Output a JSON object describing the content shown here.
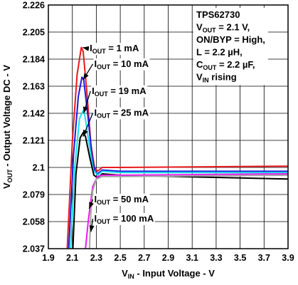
{
  "chart_data": {
    "type": "line",
    "title": "",
    "xlabel": {
      "main": "V",
      "sub": "IN",
      "rest": " - Input Voltage - V"
    },
    "ylabel": {
      "main": "V",
      "sub": "OUT",
      "rest": " - Output Voltage DC - V"
    },
    "xlim": [
      1.9,
      3.9
    ],
    "ylim": [
      2.037,
      2.226
    ],
    "x_ticks": [
      "1.9",
      "2.1",
      "2.3",
      "2.5",
      "2.7",
      "2.9",
      "3.1",
      "3.3",
      "3.5",
      "3.7",
      "3.9"
    ],
    "y_ticks": [
      "2.226",
      "2.205",
      "2.184",
      "2.163",
      "2.142",
      "2.121",
      "2.1",
      "2.079",
      "2.058",
      "2.037"
    ],
    "grid": true,
    "info_box": [
      {
        "main": "TPS62730",
        "sub": "",
        "rest": ""
      },
      {
        "main": "V",
        "sub": "OUT",
        "rest": " = 2.1 V,"
      },
      {
        "main": "ON/BYP = High,",
        "sub": "",
        "rest": ""
      },
      {
        "main": "L = 2.2 µH,",
        "sub": "",
        "rest": ""
      },
      {
        "main": "C",
        "sub": "OUT",
        "rest": " = 2.2 µF,"
      },
      {
        "main": "V",
        "sub": "IN",
        "rest": " rising"
      }
    ],
    "series": [
      {
        "label": {
          "main": "I",
          "sub": "OUT",
          "rest": " = 1 mA"
        },
        "color": "#e8191e",
        "points": [
          [
            2.057,
            2.037
          ],
          [
            2.1,
            2.12
          ],
          [
            2.14,
            2.172
          ],
          [
            2.175,
            2.193
          ],
          [
            2.19,
            2.19
          ],
          [
            2.22,
            2.16
          ],
          [
            2.255,
            2.118
          ],
          [
            2.285,
            2.1
          ],
          [
            2.31,
            2.097
          ],
          [
            2.35,
            2.1
          ],
          [
            2.5,
            2.1
          ],
          [
            3.9,
            2.101
          ]
        ],
        "arrow_tip": [
          2.185,
          2.193
        ],
        "label_pos": [
          2.245,
          2.19
        ]
      },
      {
        "label": {
          "main": "I",
          "sub": "OUT",
          "rest": " = 10 mA"
        },
        "color": "#1a1adf",
        "points": [
          [
            2.07,
            2.037
          ],
          [
            2.11,
            2.11
          ],
          [
            2.15,
            2.155
          ],
          [
            2.18,
            2.17
          ],
          [
            2.195,
            2.168
          ],
          [
            2.23,
            2.14
          ],
          [
            2.265,
            2.108
          ],
          [
            2.29,
            2.097
          ],
          [
            2.31,
            2.095
          ],
          [
            2.35,
            2.098
          ],
          [
            2.5,
            2.097
          ],
          [
            3.9,
            2.097
          ]
        ],
        "arrow_tip": [
          2.19,
          2.168
        ],
        "label_pos": [
          2.283,
          2.178
        ]
      },
      {
        "label": {
          "main": "I",
          "sub": "OUT",
          "rest": " = 19 mA"
        },
        "color": "#17e0e6",
        "points": [
          [
            2.085,
            2.037
          ],
          [
            2.12,
            2.1
          ],
          [
            2.16,
            2.138
          ],
          [
            2.19,
            2.144
          ],
          [
            2.205,
            2.14
          ],
          [
            2.24,
            2.118
          ],
          [
            2.275,
            2.098
          ],
          [
            2.31,
            2.094
          ],
          [
            2.35,
            2.097
          ],
          [
            2.5,
            2.096
          ],
          [
            3.9,
            2.096
          ]
        ],
        "arrow_tip": [
          2.195,
          2.142
        ],
        "label_pos": [
          2.263,
          2.157
        ]
      },
      {
        "label": {
          "main": "I",
          "sub": "OUT",
          "rest": " = 25 mA"
        },
        "color": "#000000",
        "points": [
          [
            2.105,
            2.037
          ],
          [
            2.13,
            2.095
          ],
          [
            2.165,
            2.123
          ],
          [
            2.19,
            2.127
          ],
          [
            2.21,
            2.124
          ],
          [
            2.245,
            2.108
          ],
          [
            2.28,
            2.094
          ],
          [
            2.31,
            2.092
          ],
          [
            2.35,
            2.095
          ],
          [
            2.5,
            2.094
          ],
          [
            3.9,
            2.091
          ]
        ],
        "arrow_tip": [
          2.19,
          2.124
        ],
        "label_pos": [
          2.283,
          2.14
        ]
      },
      {
        "label": {
          "main": "I",
          "sub": "OUT",
          "rest": " = 50 mA"
        },
        "color": "#ef17ee",
        "points": [
          [
            2.21,
            2.037
          ],
          [
            2.235,
            2.06
          ],
          [
            2.27,
            2.085
          ],
          [
            2.31,
            2.093
          ],
          [
            2.35,
            2.094
          ],
          [
            2.5,
            2.094
          ],
          [
            3.9,
            2.095
          ]
        ],
        "arrow_tip": [
          2.24,
          2.068
        ],
        "label_pos": [
          2.283,
          2.073
        ]
      },
      {
        "label": {
          "main": "I",
          "sub": "OUT",
          "rest": " = 100 mA"
        },
        "color": "#a5a5a5",
        "points": [
          [
            2.243,
            2.037
          ],
          [
            2.255,
            2.065
          ],
          [
            2.27,
            2.082
          ],
          [
            2.3,
            2.091
          ],
          [
            2.35,
            2.093
          ],
          [
            2.5,
            2.093
          ],
          [
            3.9,
            2.094
          ]
        ],
        "arrow_tip": [
          2.255,
          2.05
        ],
        "label_pos": [
          2.283,
          2.058
        ]
      }
    ]
  }
}
